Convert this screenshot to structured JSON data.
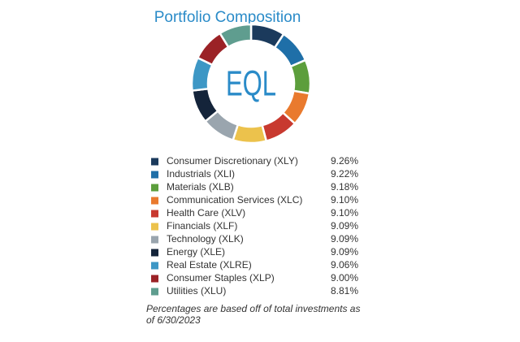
{
  "chart_data": {
    "type": "pie",
    "title": "Portfolio Composition",
    "center_label": "EQL",
    "categories": [
      "Consumer Discretionary (XLY)",
      "Industrials (XLI)",
      "Materials (XLB)",
      "Communication Services (XLC)",
      "Health Care (XLV)",
      "Financials (XLF)",
      "Technology (XLK)",
      "Energy (XLE)",
      "Real Estate (XLRE)",
      "Consumer Staples (XLP)",
      "Utilities (XLU)"
    ],
    "values": [
      9.26,
      9.22,
      9.18,
      9.1,
      9.1,
      9.09,
      9.09,
      9.09,
      9.06,
      9.0,
      8.81
    ],
    "value_labels": [
      "9.26%",
      "9.22%",
      "9.18%",
      "9.10%",
      "9.10%",
      "9.09%",
      "9.09%",
      "9.09%",
      "9.06%",
      "9.00%",
      "8.81%"
    ],
    "colors": [
      "#1b3a5c",
      "#1f6fa8",
      "#5c9e3c",
      "#e97a2e",
      "#c8392f",
      "#ecc24c",
      "#9aa5ae",
      "#14243a",
      "#3d97c5",
      "#9b2226",
      "#5f9d8f"
    ],
    "note": "Percentages are based off of total investments as of 6/30/2023"
  }
}
